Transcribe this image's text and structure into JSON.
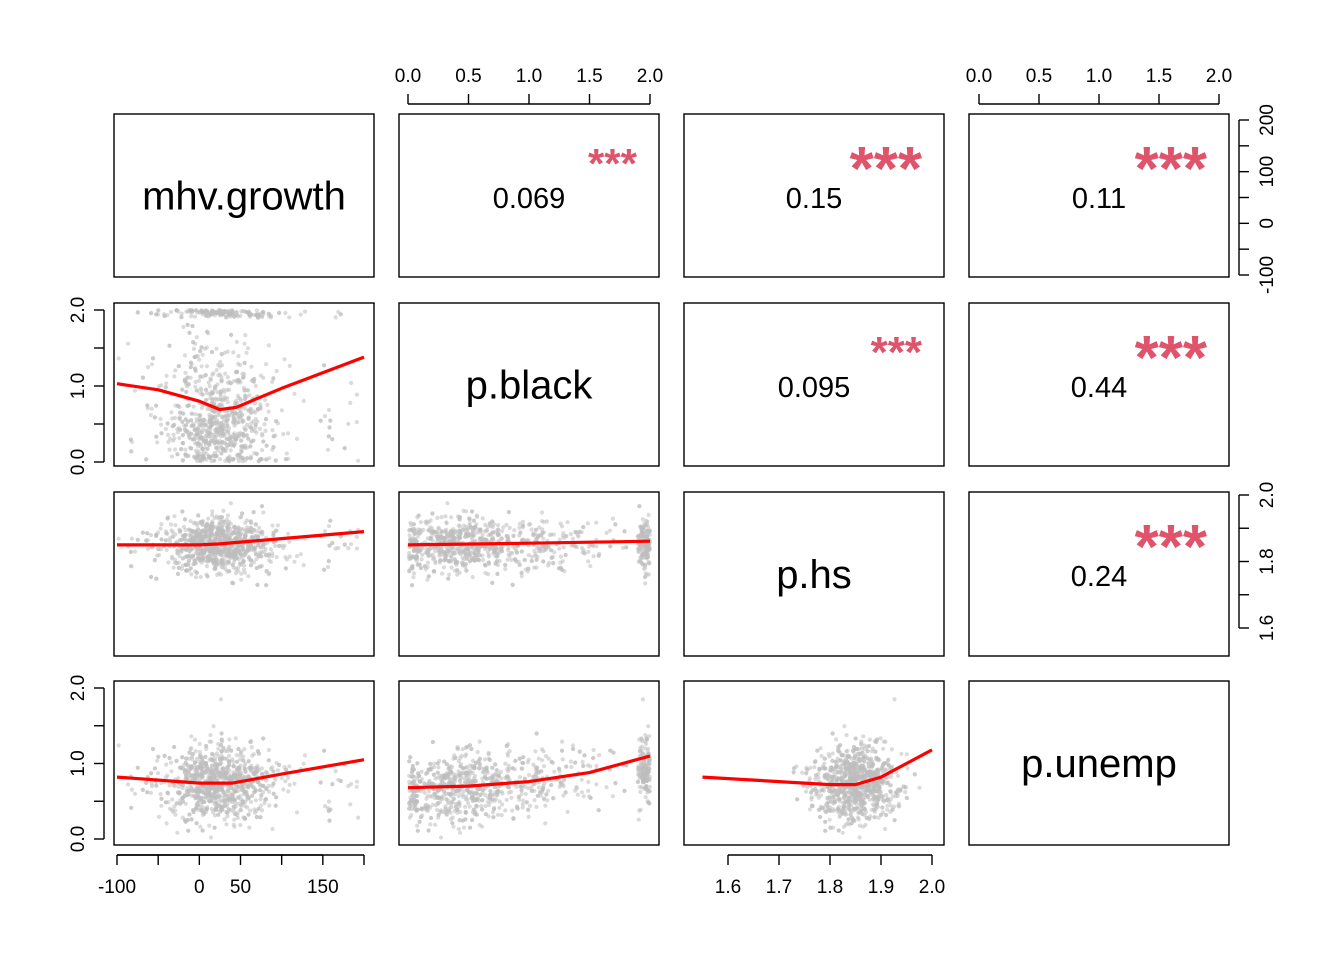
{
  "chart_data": {
    "type": "scatter",
    "subtype": "scatterplot-matrix",
    "title": "",
    "variables": [
      "mhv.growth",
      "p.black",
      "p.hs",
      "p.unemp"
    ],
    "axes": {
      "mhv.growth": {
        "range": [
          -100,
          200
        ],
        "ticks_bottom": [
          "-100",
          "0",
          "50",
          "150"
        ],
        "ticks_right": [
          "-100",
          "0",
          "100",
          "200"
        ]
      },
      "p.black": {
        "range": [
          0,
          2
        ],
        "ticks": [
          "0.0",
          "0.5",
          "1.0",
          "1.5",
          "2.0"
        ],
        "ticks_left": [
          "0.0",
          "1.0",
          "2.0"
        ]
      },
      "p.hs": {
        "range": [
          1.55,
          2.0
        ],
        "ticks_bottom": [
          "1.6",
          "1.7",
          "1.8",
          "1.9",
          "2.0"
        ],
        "ticks_right": [
          "1.6",
          "1.8",
          "2.0"
        ]
      },
      "p.unemp": {
        "range": [
          0,
          2
        ],
        "ticks_top": [
          "0.0",
          "0.5",
          "1.0",
          "1.5",
          "2.0"
        ],
        "ticks_left": [
          "0.0",
          "1.0",
          "2.0"
        ]
      }
    },
    "correlations": [
      {
        "row": "mhv.growth",
        "col": "p.black",
        "r": "0.069",
        "stars": "***"
      },
      {
        "row": "mhv.growth",
        "col": "p.hs",
        "r": "0.15",
        "stars": "***"
      },
      {
        "row": "mhv.growth",
        "col": "p.unemp",
        "r": "0.11",
        "stars": "***"
      },
      {
        "row": "p.black",
        "col": "p.hs",
        "r": "0.095",
        "stars": "***"
      },
      {
        "row": "p.black",
        "col": "p.unemp",
        "r": "0.44",
        "stars": "***"
      },
      {
        "row": "p.hs",
        "col": "p.unemp",
        "r": "0.24",
        "stars": "***"
      }
    ],
    "smoothers": [
      {
        "y": "p.black",
        "x": "mhv.growth",
        "points": [
          [
            -100,
            1.03
          ],
          [
            -50,
            0.95
          ],
          [
            0,
            0.8
          ],
          [
            25,
            0.69
          ],
          [
            45,
            0.72
          ],
          [
            100,
            0.97
          ],
          [
            200,
            1.38
          ]
        ]
      },
      {
        "y": "p.hs",
        "x": "mhv.growth",
        "points": [
          [
            -100,
            1.85
          ],
          [
            0,
            1.85
          ],
          [
            25,
            1.853
          ],
          [
            100,
            1.869
          ],
          [
            200,
            1.89
          ]
        ]
      },
      {
        "y": "p.hs",
        "x": "p.black",
        "points": [
          [
            0,
            1.85
          ],
          [
            1,
            1.855
          ],
          [
            2,
            1.861
          ]
        ]
      },
      {
        "y": "p.unemp",
        "x": "mhv.growth",
        "points": [
          [
            -100,
            0.82
          ],
          [
            0,
            0.74
          ],
          [
            40,
            0.74
          ],
          [
            100,
            0.86
          ],
          [
            200,
            1.05
          ]
        ]
      },
      {
        "y": "p.unemp",
        "x": "p.black",
        "points": [
          [
            0,
            0.68
          ],
          [
            0.5,
            0.7
          ],
          [
            1,
            0.76
          ],
          [
            1.5,
            0.88
          ],
          [
            2,
            1.1
          ]
        ]
      },
      {
        "y": "p.unemp",
        "x": "p.hs",
        "points": [
          [
            1.55,
            0.82
          ],
          [
            1.7,
            0.76
          ],
          [
            1.8,
            0.72
          ],
          [
            1.85,
            0.72
          ],
          [
            1.9,
            0.82
          ],
          [
            2.0,
            1.18
          ]
        ]
      }
    ],
    "point_color": "#BEBEBE",
    "smoother_color": "#FF0000",
    "star_color": "#DF536B"
  }
}
